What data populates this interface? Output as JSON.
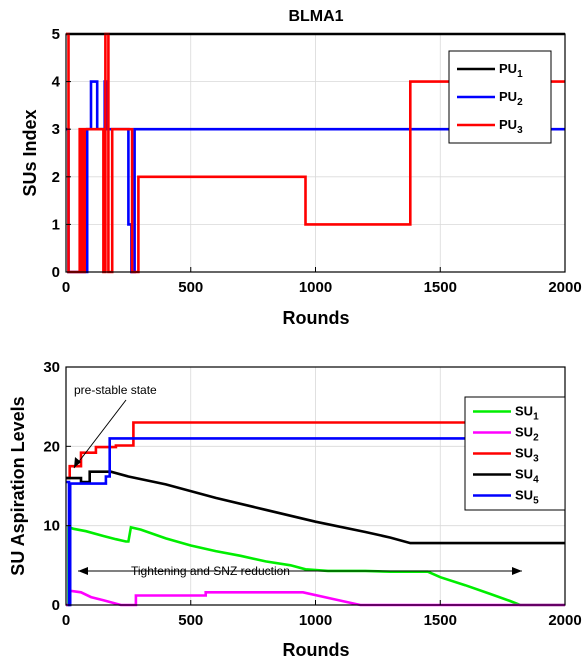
{
  "chart_data": [
    {
      "type": "line",
      "title": "BLMA1",
      "xlabel": "Rounds",
      "ylabel": "SUs Index",
      "xlim": [
        0,
        2000
      ],
      "ylim": [
        0,
        5
      ],
      "xticks": [
        "0",
        "500",
        "1000",
        "1500",
        "2000"
      ],
      "yticks": [
        "0",
        "1",
        "2",
        "3",
        "4",
        "5"
      ],
      "grid": true,
      "legend_position": "top-right",
      "series": [
        {
          "name": "PU",
          "sub": "1",
          "color": "#000000",
          "points": [
            [
              0,
              5
            ],
            [
              2000,
              5
            ]
          ]
        },
        {
          "name": "PU",
          "sub": "2",
          "color": "#0000ff",
          "points": [
            [
              0,
              3
            ],
            [
              10,
              3
            ],
            [
              10,
              0
            ],
            [
              85,
              0
            ],
            [
              85,
              3
            ],
            [
              100,
              3
            ],
            [
              100,
              4
            ],
            [
              125,
              4
            ],
            [
              125,
              3
            ],
            [
              155,
              3
            ],
            [
              155,
              4
            ],
            [
              165,
              4
            ],
            [
              165,
              3
            ],
            [
              250,
              3
            ],
            [
              250,
              1
            ],
            [
              262,
              1
            ],
            [
              262,
              0
            ],
            [
              275,
              0
            ],
            [
              275,
              3
            ],
            [
              2000,
              3
            ]
          ]
        },
        {
          "name": "PU",
          "sub": "3",
          "color": "#ff0000",
          "points": [
            [
              0,
              5
            ],
            [
              10,
              5
            ],
            [
              10,
              0
            ],
            [
              55,
              0
            ],
            [
              55,
              3
            ],
            [
              65,
              3
            ],
            [
              65,
              0
            ],
            [
              75,
              0
            ],
            [
              75,
              3
            ],
            [
              150,
              3
            ],
            [
              150,
              0
            ],
            [
              158,
              0
            ],
            [
              158,
              5
            ],
            [
              170,
              5
            ],
            [
              170,
              0
            ],
            [
              185,
              0
            ],
            [
              185,
              3
            ],
            [
              265,
              3
            ],
            [
              265,
              0
            ],
            [
              290,
              0
            ],
            [
              290,
              2
            ],
            [
              960,
              2
            ],
            [
              960,
              1
            ],
            [
              1380,
              1
            ],
            [
              1380,
              4
            ],
            [
              2000,
              4
            ]
          ]
        }
      ]
    },
    {
      "type": "line",
      "title": "",
      "xlabel": "Rounds",
      "ylabel": "SU Aspiration Levels",
      "xlim": [
        0,
        2000
      ],
      "ylim": [
        0,
        30
      ],
      "xticks": [
        "0",
        "500",
        "1000",
        "1500",
        "2000"
      ],
      "yticks": [
        "0",
        "10",
        "20",
        "30"
      ],
      "grid": true,
      "legend_position": "right",
      "series": [
        {
          "name": "SU",
          "sub": "1",
          "color": "#00ee00",
          "points": [
            [
              0,
              0
            ],
            [
              10,
              0
            ],
            [
              10,
              9.8
            ],
            [
              30,
              9.6
            ],
            [
              80,
              9.3
            ],
            [
              150,
              8.7
            ],
            [
              200,
              8.3
            ],
            [
              240,
              8.0
            ],
            [
              250,
              8.0
            ],
            [
              260,
              9.8
            ],
            [
              300,
              9.5
            ],
            [
              400,
              8.4
            ],
            [
              500,
              7.5
            ],
            [
              600,
              6.8
            ],
            [
              700,
              6.2
            ],
            [
              800,
              5.5
            ],
            [
              900,
              5.0
            ],
            [
              960,
              4.5
            ],
            [
              1050,
              4.3
            ],
            [
              1200,
              4.3
            ],
            [
              1300,
              4.2
            ],
            [
              1450,
              4.2
            ],
            [
              1500,
              3.5
            ],
            [
              1600,
              2.5
            ],
            [
              1700,
              1.4
            ],
            [
              1780,
              0.5
            ],
            [
              1820,
              0
            ],
            [
              2000,
              0
            ]
          ]
        },
        {
          "name": "SU",
          "sub": "2",
          "color": "#ff00ff",
          "points": [
            [
              0,
              0
            ],
            [
              15,
              0
            ],
            [
              15,
              1.8
            ],
            [
              60,
              1.6
            ],
            [
              100,
              1.0
            ],
            [
              150,
              0.6
            ],
            [
              220,
              0
            ],
            [
              280,
              0
            ],
            [
              280,
              1.2
            ],
            [
              560,
              1.2
            ],
            [
              560,
              1.6
            ],
            [
              950,
              1.6
            ],
            [
              1050,
              0.9
            ],
            [
              1150,
              0.2
            ],
            [
              1180,
              0
            ],
            [
              2000,
              0
            ]
          ]
        },
        {
          "name": "SU",
          "sub": "3",
          "color": "#ff0000",
          "points": [
            [
              0,
              16
            ],
            [
              15,
              16
            ],
            [
              15,
              17.5
            ],
            [
              60,
              17.5
            ],
            [
              60,
              19.2
            ],
            [
              120,
              19.2
            ],
            [
              120,
              19.9
            ],
            [
              200,
              19.9
            ],
            [
              200,
              20.1
            ],
            [
              270,
              20.1
            ],
            [
              270,
              23
            ],
            [
              2000,
              23
            ]
          ]
        },
        {
          "name": "SU",
          "sub": "4",
          "color": "#000000",
          "points": [
            [
              0,
              16
            ],
            [
              60,
              16
            ],
            [
              60,
              15.5
            ],
            [
              95,
              15.5
            ],
            [
              95,
              16.8
            ],
            [
              180,
              16.8
            ],
            [
              250,
              16.2
            ],
            [
              400,
              15.2
            ],
            [
              600,
              13.5
            ],
            [
              800,
              12.0
            ],
            [
              1000,
              10.5
            ],
            [
              1200,
              9.2
            ],
            [
              1300,
              8.5
            ],
            [
              1380,
              7.8
            ],
            [
              1380,
              7.8
            ],
            [
              2000,
              7.8
            ]
          ]
        },
        {
          "name": "SU",
          "sub": "5",
          "color": "#0000ff",
          "points": [
            [
              0,
              15.5
            ],
            [
              12,
              15.5
            ],
            [
              12,
              0
            ],
            [
              17,
              0
            ],
            [
              17,
              15.3
            ],
            [
              160,
              15.3
            ],
            [
              160,
              16.2
            ],
            [
              175,
              16.2
            ],
            [
              175,
              21
            ],
            [
              2000,
              21
            ]
          ]
        }
      ],
      "annotations": {
        "pre_stable": "pre-stable state",
        "tightening": "Tightening and SNZ reduction"
      }
    }
  ]
}
